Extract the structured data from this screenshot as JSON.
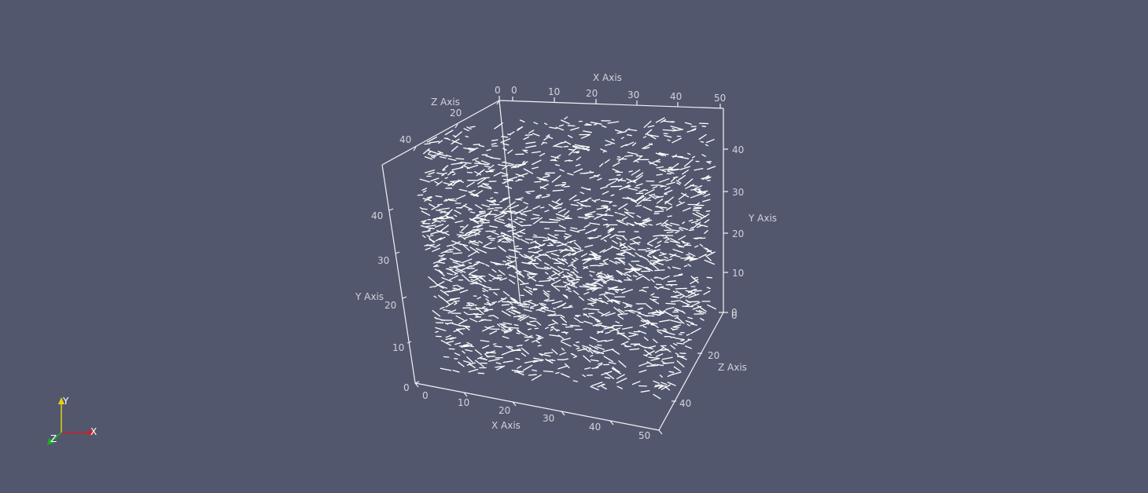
{
  "colors": {
    "background": "#52576e",
    "axes": "#f2f2f4",
    "labels": "#d2d3da",
    "glyphs": "#ffffff",
    "orientation_x": "#d61f1f",
    "orientation_y": "#e6d20c",
    "orientation_z": "#16b51c"
  },
  "cube_axes": {
    "x_front": {
      "title": "X Axis",
      "ticks": [
        "0",
        "10",
        "20",
        "30",
        "40",
        "50"
      ]
    },
    "x_top": {
      "title": "X Axis",
      "ticks": [
        "0",
        "10",
        "20",
        "30",
        "40",
        "50"
      ]
    },
    "y_left": {
      "title": "Y Axis",
      "ticks": [
        "0",
        "10",
        "20",
        "30",
        "40"
      ]
    },
    "y_right": {
      "title": "Y Axis",
      "ticks": [
        "0",
        "10",
        "20",
        "30",
        "40"
      ]
    },
    "z_top": {
      "title": "Z Axis",
      "ticks": [
        "0",
        "20",
        "40"
      ]
    },
    "z_right": {
      "title": "Z Axis",
      "ticks": [
        "0",
        "20",
        "40"
      ]
    }
  },
  "orientation_widget": {
    "x_label": "X",
    "y_label": "Y",
    "z_label": "Z"
  },
  "glyph_field": {
    "count": 1700,
    "seed": 7
  }
}
